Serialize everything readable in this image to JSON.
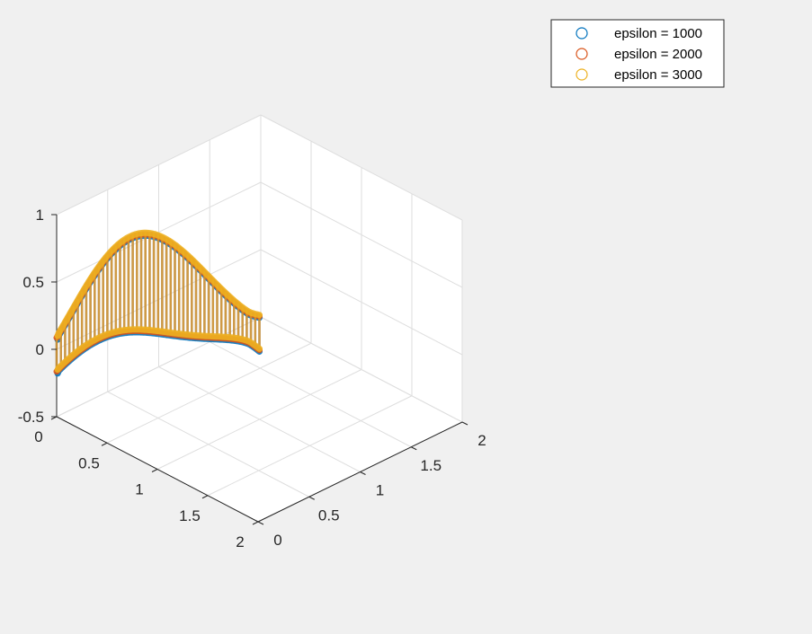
{
  "chart_data": {
    "type": "scatter",
    "view": "3d",
    "title": "",
    "xlabel": "",
    "ylabel": "",
    "zlabel": "",
    "grid": true,
    "box": true,
    "legend_position": "top-right",
    "xlim": [
      0,
      2
    ],
    "ylim": [
      0,
      2
    ],
    "zlim": [
      -0.5,
      1
    ],
    "x_ticks": [
      0,
      0.5,
      1,
      1.5,
      2
    ],
    "x_tick_labels": [
      "0",
      "0.5",
      "1",
      "1.5",
      "2"
    ],
    "y_ticks": [
      0,
      0.5,
      1,
      1.5,
      2
    ],
    "y_tick_labels": [
      "0",
      "0.5",
      "1",
      "1.5",
      "2"
    ],
    "z_ticks": [
      -0.5,
      0,
      0.5,
      1
    ],
    "z_tick_labels": [
      "-0.5",
      "0",
      "0.5",
      "1"
    ],
    "marker": "circle",
    "series": [
      {
        "name": "epsilon = 1000",
        "color": "#0072bd"
      },
      {
        "name": "epsilon = 2000",
        "color": "#d95319"
      },
      {
        "name": "epsilon = 3000",
        "color": "#edb120"
      }
    ]
  }
}
